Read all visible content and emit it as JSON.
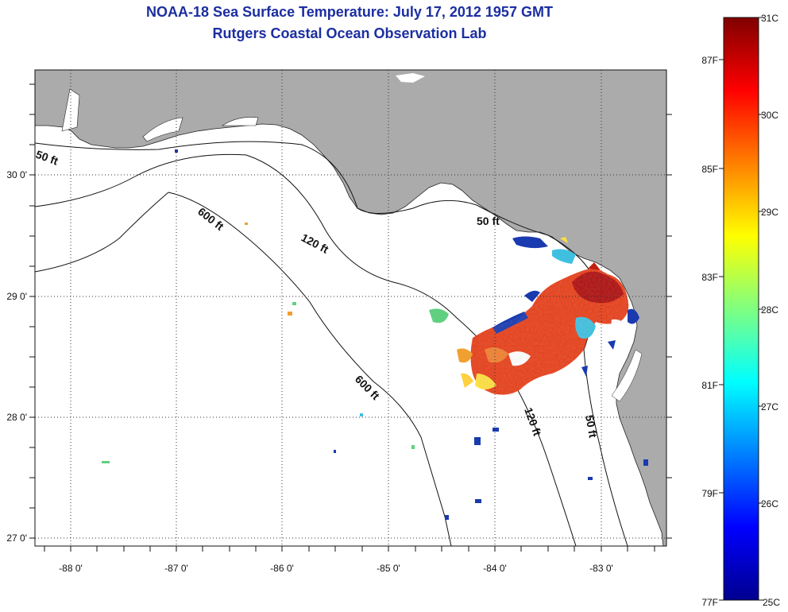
{
  "title": {
    "line1": "NOAA-18 Sea Surface Temperature:  July 17, 2012 1957 GMT",
    "line2": "Rutgers Coastal Ocean Observation Lab"
  },
  "axes": {
    "lon_labels": [
      "-88 0'",
      "-87 0'",
      "-86 0'",
      "-85 0'",
      "-84 0'",
      "-83 0'"
    ],
    "lat_labels": [
      "30 0'",
      "29 0'",
      "28 0'",
      "27 0'"
    ]
  },
  "contours": {
    "label_50_west": "50 ft",
    "label_50_ne": "50 ft",
    "label_50_se": "50 ft",
    "label_120_n": "120 ft",
    "label_120_s": "120 ft",
    "label_600_n": "600 ft",
    "label_600_s": "600 ft"
  },
  "colorbar": {
    "celsius_labels": [
      "31C",
      "30C",
      "29C",
      "28C",
      "27C",
      "26C",
      "25C"
    ],
    "fahrenheit_labels": [
      "87F",
      "85F",
      "83F",
      "81F",
      "79F",
      "77F"
    ]
  },
  "colors": {
    "land": "#ababab",
    "title": "#1c2ea0",
    "warm": "#e8401a",
    "hot": "#b01010",
    "cool": "#1a3ab0"
  }
}
